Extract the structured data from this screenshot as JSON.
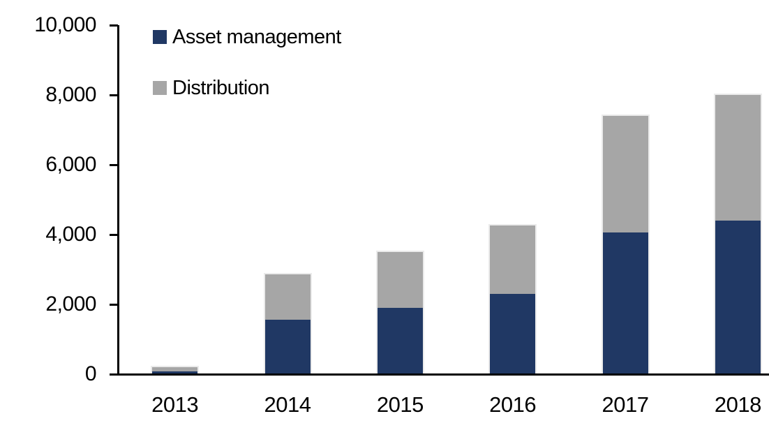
{
  "chart_data": {
    "type": "bar",
    "stacked": true,
    "title": "",
    "xlabel": "",
    "ylabel": "",
    "categories": [
      "2013",
      "2014",
      "2015",
      "2016",
      "2017",
      "2018"
    ],
    "series": [
      {
        "name": "Asset management",
        "color": "#203864",
        "values": [
          80,
          1550,
          1900,
          2300,
          4050,
          4400
        ]
      },
      {
        "name": "Distribution",
        "color": "#A6A6A6",
        "values": [
          120,
          1300,
          1600,
          1950,
          3350,
          3600
        ]
      }
    ],
    "ylim": [
      0,
      10000
    ],
    "ytick_step": 2000,
    "ytick_labels": [
      "0",
      "2,000",
      "4,000",
      "6,000",
      "8,000",
      "10,000"
    ],
    "grid": false,
    "legend_position": "top-left-inside",
    "axis_color": "#000000",
    "background_color": "#FFFFFF"
  }
}
